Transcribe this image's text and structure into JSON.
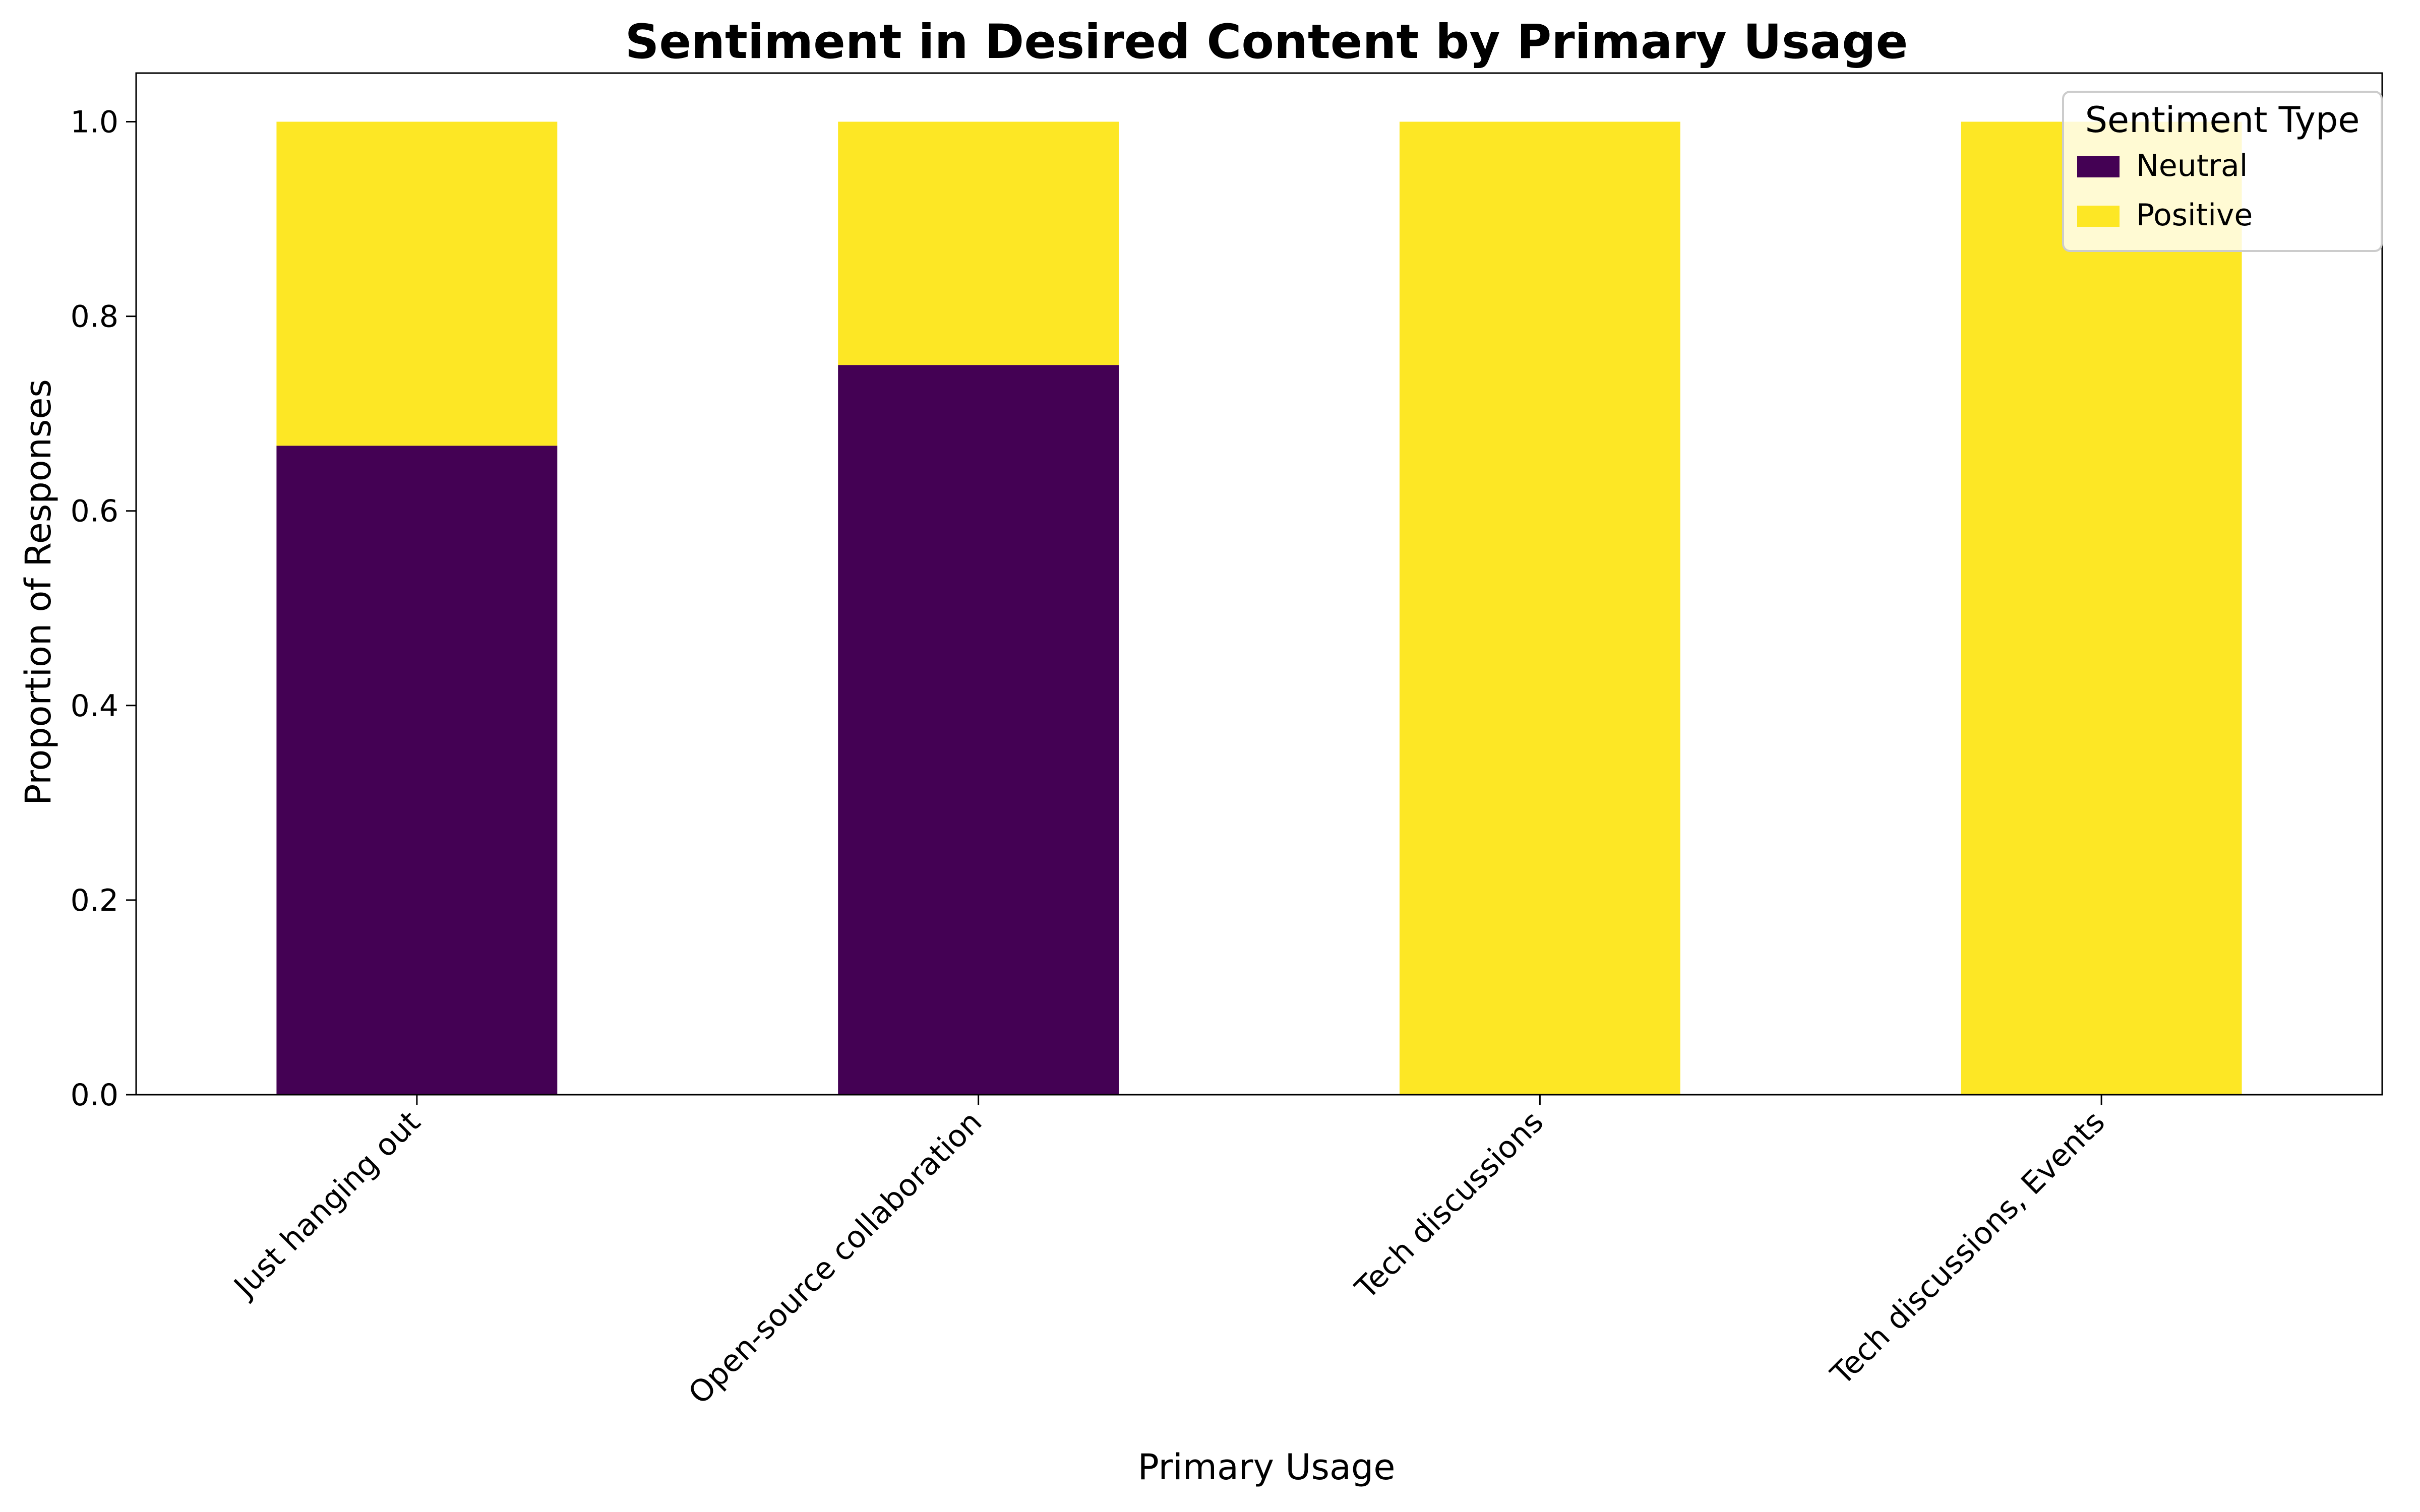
{
  "chart_data": {
    "type": "bar",
    "stacked": true,
    "title": "Sentiment in Desired Content by Primary Usage",
    "xlabel": "Primary Usage",
    "ylabel": "Proportion of Responses",
    "categories": [
      "Just hanging out",
      "Open-source collaboration",
      "Tech discussions",
      "Tech discussions, Events"
    ],
    "series": [
      {
        "name": "Neutral",
        "color": "#440154",
        "values": [
          0.667,
          0.75,
          0.0,
          0.0
        ]
      },
      {
        "name": "Positive",
        "color": "#fde725",
        "values": [
          0.333,
          0.25,
          1.0,
          1.0
        ]
      }
    ],
    "ylim": [
      0,
      1.05
    ],
    "yticks": [
      0.0,
      0.2,
      0.4,
      0.6,
      0.8,
      1.0
    ],
    "ytick_labels": [
      "0.0",
      "0.2",
      "0.4",
      "0.6",
      "0.8",
      "1.0"
    ],
    "grid": false,
    "legend": {
      "title": "Sentiment Type",
      "placement": "upper right"
    }
  }
}
